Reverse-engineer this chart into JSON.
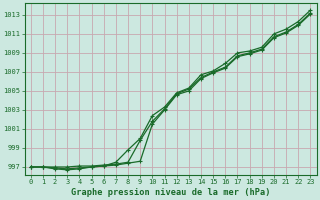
{
  "title": "Graphe pression niveau de la mer (hPa)",
  "x_labels": [
    "0",
    "1",
    "2",
    "3",
    "4",
    "5",
    "6",
    "7",
    "8",
    "9",
    "10",
    "11",
    "12",
    "13",
    "14",
    "15",
    "16",
    "17",
    "18",
    "19",
    "20",
    "21",
    "22",
    "23"
  ],
  "ylim": [
    996.2,
    1014.2
  ],
  "yticks": [
    997,
    999,
    1001,
    1003,
    1005,
    1007,
    1009,
    1011,
    1013
  ],
  "xlim": [
    -0.5,
    23.5
  ],
  "bg_color": "#cce8e0",
  "grid_color": "#aacfc8",
  "line_color": "#1a6b2a",
  "marker_color": "#1a6b2a",
  "title_color": "#1a6b2a",
  "series1": [
    997.0,
    997.0,
    996.9,
    996.8,
    996.9,
    997.0,
    997.1,
    997.2,
    997.4,
    997.6,
    1001.5,
    1003.0,
    1004.6,
    1005.0,
    1006.3,
    1006.9,
    1007.4,
    1008.6,
    1008.9,
    1009.3,
    1010.6,
    1011.1,
    1011.9,
    1013.1
  ],
  "series2": [
    997.0,
    997.0,
    997.0,
    997.0,
    997.1,
    997.1,
    997.2,
    997.3,
    997.5,
    999.8,
    1001.8,
    1003.1,
    1004.7,
    1005.2,
    1006.4,
    1007.0,
    1007.5,
    1008.7,
    1009.0,
    1009.4,
    1010.7,
    1011.2,
    1012.0,
    1013.2
  ],
  "series3": [
    997.0,
    997.0,
    996.8,
    996.7,
    996.8,
    997.0,
    997.1,
    997.5,
    998.8,
    1000.0,
    1002.4,
    1003.3,
    1004.8,
    1005.3,
    1006.7,
    1007.1,
    1007.9,
    1009.0,
    1009.2,
    1009.6,
    1011.0,
    1011.5,
    1012.3,
    1013.5
  ]
}
